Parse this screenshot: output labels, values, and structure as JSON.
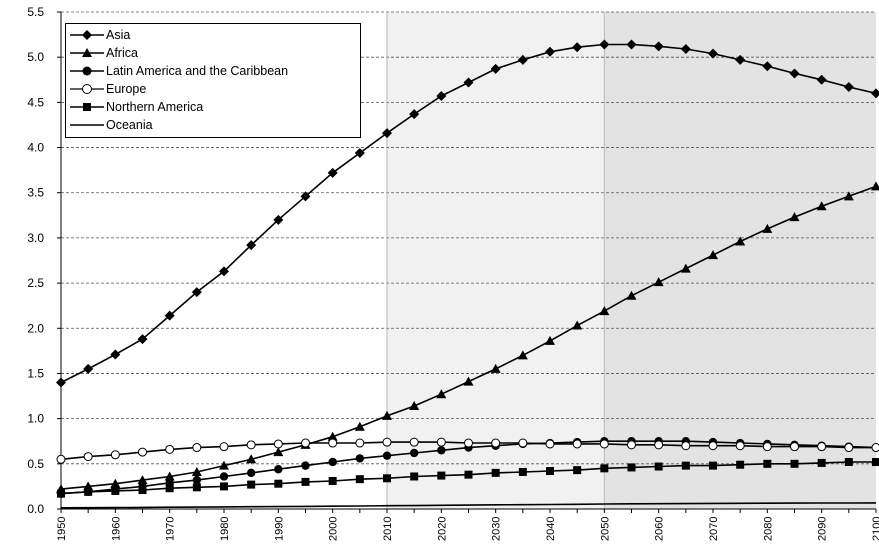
{
  "chart_data": {
    "type": "line",
    "title": "",
    "xlabel": "",
    "ylabel": "",
    "xlim": [
      1950,
      2100
    ],
    "ylim": [
      0,
      5.5
    ],
    "yticks": [
      "0.0",
      "0.5",
      "1.0",
      "1.5",
      "2.0",
      "2.5",
      "3.0",
      "3.5",
      "4.0",
      "4.5",
      "5.0",
      "5.5"
    ],
    "xticks": [
      "1950",
      "1960",
      "1970",
      "1980",
      "1990",
      "2000",
      "2010",
      "2020",
      "2030",
      "2040",
      "2050",
      "2060",
      "2070",
      "2080",
      "2090",
      "2100"
    ],
    "grid": "horizontal dashed",
    "legend_position": "top-left",
    "shaded_regions": [
      {
        "from": 2010,
        "to": 2050,
        "color": "#f1f1f1"
      },
      {
        "from": 2050,
        "to": 2100,
        "color": "#e3e3e3"
      }
    ],
    "x": [
      1950,
      1955,
      1960,
      1965,
      1970,
      1975,
      1980,
      1985,
      1990,
      1995,
      2000,
      2005,
      2010,
      2015,
      2020,
      2025,
      2030,
      2035,
      2040,
      2045,
      2050,
      2055,
      2060,
      2065,
      2070,
      2075,
      2080,
      2085,
      2090,
      2095,
      2100
    ],
    "series": [
      {
        "name": "Asia",
        "marker": "diamond",
        "color": "#000000",
        "values": [
          1.4,
          1.55,
          1.71,
          1.88,
          2.14,
          2.4,
          2.63,
          2.92,
          3.2,
          3.46,
          3.72,
          3.94,
          4.16,
          4.37,
          4.57,
          4.72,
          4.87,
          4.97,
          5.06,
          5.11,
          5.14,
          5.14,
          5.12,
          5.09,
          5.04,
          4.97,
          4.9,
          4.82,
          4.75,
          4.67,
          4.6
        ]
      },
      {
        "name": "Africa",
        "marker": "triangle",
        "color": "#000000",
        "values": [
          0.22,
          0.25,
          0.28,
          0.32,
          0.36,
          0.41,
          0.48,
          0.55,
          0.63,
          0.71,
          0.8,
          0.91,
          1.03,
          1.14,
          1.27,
          1.41,
          1.55,
          1.7,
          1.86,
          2.03,
          2.19,
          2.36,
          2.51,
          2.66,
          2.81,
          2.96,
          3.1,
          3.23,
          3.35,
          3.46,
          3.57
        ]
      },
      {
        "name": "Latin America and the Caribbean",
        "marker": "circle",
        "color": "#000000",
        "values": [
          0.17,
          0.19,
          0.22,
          0.25,
          0.29,
          0.32,
          0.36,
          0.4,
          0.44,
          0.48,
          0.52,
          0.56,
          0.59,
          0.62,
          0.65,
          0.68,
          0.7,
          0.72,
          0.73,
          0.74,
          0.75,
          0.75,
          0.75,
          0.75,
          0.74,
          0.73,
          0.72,
          0.71,
          0.7,
          0.69,
          0.68
        ]
      },
      {
        "name": "Europe",
        "marker": "open-circle",
        "color": "#000000",
        "values": [
          0.55,
          0.58,
          0.6,
          0.63,
          0.66,
          0.68,
          0.69,
          0.71,
          0.72,
          0.73,
          0.73,
          0.73,
          0.74,
          0.74,
          0.74,
          0.73,
          0.73,
          0.73,
          0.72,
          0.72,
          0.72,
          0.71,
          0.71,
          0.7,
          0.7,
          0.7,
          0.69,
          0.69,
          0.69,
          0.68,
          0.68
        ]
      },
      {
        "name": "Northern America",
        "marker": "square",
        "color": "#000000",
        "values": [
          0.17,
          0.19,
          0.2,
          0.21,
          0.23,
          0.24,
          0.25,
          0.27,
          0.28,
          0.3,
          0.31,
          0.33,
          0.34,
          0.36,
          0.37,
          0.38,
          0.4,
          0.41,
          0.42,
          0.43,
          0.45,
          0.46,
          0.47,
          0.48,
          0.48,
          0.49,
          0.5,
          0.5,
          0.51,
          0.52,
          0.52
        ]
      },
      {
        "name": "Oceania",
        "marker": "none",
        "color": "#000000",
        "values": [
          0.013,
          0.014,
          0.016,
          0.018,
          0.02,
          0.021,
          0.023,
          0.025,
          0.027,
          0.029,
          0.031,
          0.033,
          0.036,
          0.038,
          0.041,
          0.043,
          0.046,
          0.048,
          0.05,
          0.052,
          0.055,
          0.057,
          0.059,
          0.06,
          0.062,
          0.063,
          0.064,
          0.065,
          0.066,
          0.066,
          0.067
        ]
      }
    ]
  }
}
